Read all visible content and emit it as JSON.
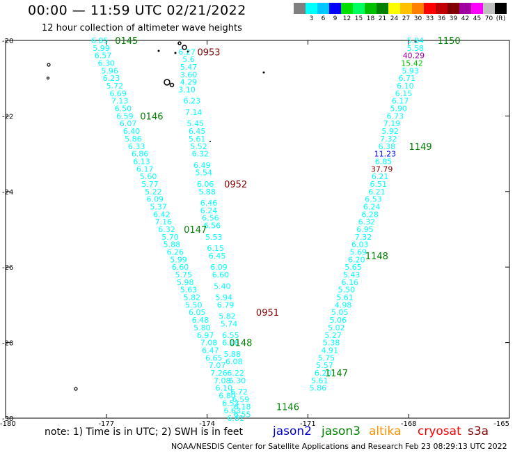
{
  "title": "00:00 — 11:59 UTC 02/21/2022",
  "subtitle": "12 hour collection of altimeter wave heights",
  "color_scale": {
    "labels": [
      "",
      "3",
      "6",
      "9",
      "12",
      "15",
      "18",
      "21",
      "24",
      "27",
      "30",
      "33",
      "36",
      "39",
      "42",
      "45",
      "70",
      "(ft)"
    ],
    "colors": [
      "#808080",
      "#00ffff",
      "#00c8ff",
      "#0000ff",
      "#00e000",
      "#00ff60",
      "#00c000",
      "#008000",
      "#ffff00",
      "#ffc000",
      "#ff8000",
      "#ff0000",
      "#c00000",
      "#800000",
      "#a000a0",
      "#ff00ff",
      "#c0c0c0",
      "#000000"
    ]
  },
  "axes": {
    "lat_labels": [
      "-20",
      "-22",
      "-24",
      "-26",
      "-28",
      "-30"
    ],
    "lon_labels": [
      "-180",
      "-177",
      "-174",
      "-171",
      "-168",
      "-165"
    ]
  },
  "footer": {
    "note": "note: 1) Time is in UTC; 2) SWH is in feet",
    "satellites": [
      {
        "name": "jason2",
        "color": "#0000c8"
      },
      {
        "name": "jason3",
        "color": "#008000"
      },
      {
        "name": "altika",
        "color": "#ff9000"
      },
      {
        "name": "cryosat",
        "color": "#ff0000"
      },
      {
        "name": "s3a",
        "color": "#800000"
      }
    ],
    "credit": "NOAA/NESDIS Center for Satellite Applications and Research",
    "timestamp": "Feb 23 08:29:13 UTC 2022"
  },
  "tracks": [
    {
      "name": "track-0145",
      "color": "#00ffff",
      "points": [
        {
          "lon": -177.2,
          "lat": -20.0,
          "v": "6.85"
        },
        {
          "lon": -177.15,
          "lat": -20.2,
          "v": "5.99"
        },
        {
          "lon": -177.1,
          "lat": -20.4,
          "v": "6.57"
        },
        {
          "lon": -177.0,
          "lat": -20.6,
          "v": "6.30"
        },
        {
          "lon": -176.9,
          "lat": -20.8,
          "v": "5.96"
        },
        {
          "lon": -176.85,
          "lat": -21.0,
          "v": "6.23"
        },
        {
          "lon": -176.75,
          "lat": -21.2,
          "v": "5.72"
        },
        {
          "lon": -176.65,
          "lat": -21.4,
          "v": "6.69"
        },
        {
          "lon": -176.6,
          "lat": -21.6,
          "v": "7.13"
        },
        {
          "lon": -176.5,
          "lat": -21.8,
          "v": "6.50"
        },
        {
          "lon": -176.45,
          "lat": -22.0,
          "v": "6.59"
        },
        {
          "lon": -176.35,
          "lat": -22.2,
          "v": "6.07"
        },
        {
          "lon": -176.25,
          "lat": -22.4,
          "v": "6.40"
        },
        {
          "lon": -176.2,
          "lat": -22.6,
          "v": "5.86"
        },
        {
          "lon": -176.1,
          "lat": -22.8,
          "v": "6.33"
        },
        {
          "lon": -176.0,
          "lat": -23.0,
          "v": "6.86"
        },
        {
          "lon": -175.95,
          "lat": -23.2,
          "v": "6.13"
        },
        {
          "lon": -175.85,
          "lat": -23.4,
          "v": "6.17"
        },
        {
          "lon": -175.75,
          "lat": -23.6,
          "v": "5.60"
        },
        {
          "lon": -175.7,
          "lat": -23.8,
          "v": "5.77"
        },
        {
          "lon": -175.6,
          "lat": -24.0,
          "v": "5.22"
        },
        {
          "lon": -175.55,
          "lat": -24.2,
          "v": "6.09"
        },
        {
          "lon": -175.45,
          "lat": -24.4,
          "v": "5.37"
        },
        {
          "lon": -175.35,
          "lat": -24.6,
          "v": "6.42"
        },
        {
          "lon": -175.3,
          "lat": -24.8,
          "v": "7.16"
        },
        {
          "lon": -175.2,
          "lat": -25.0,
          "v": "6.32"
        },
        {
          "lon": -175.1,
          "lat": -25.2,
          "v": "5.70"
        },
        {
          "lon": -175.05,
          "lat": -25.4,
          "v": "5.88"
        },
        {
          "lon": -174.95,
          "lat": -25.6,
          "v": "6.26"
        },
        {
          "lon": -174.85,
          "lat": -25.8,
          "v": "5.99"
        },
        {
          "lon": -174.8,
          "lat": -26.0,
          "v": "6.60"
        },
        {
          "lon": -174.7,
          "lat": -26.2,
          "v": "5.75"
        },
        {
          "lon": -174.65,
          "lat": -26.4,
          "v": "5.98"
        },
        {
          "lon": -174.55,
          "lat": -26.6,
          "v": "5.63"
        },
        {
          "lon": -174.45,
          "lat": -26.8,
          "v": "5.82"
        },
        {
          "lon": -174.4,
          "lat": -27.0,
          "v": "5.50"
        },
        {
          "lon": -174.3,
          "lat": -27.2,
          "v": "6.05"
        },
        {
          "lon": -174.2,
          "lat": -27.4,
          "v": "6.48"
        },
        {
          "lon": -174.15,
          "lat": -27.6,
          "v": "5.80"
        },
        {
          "lon": -174.05,
          "lat": -27.8,
          "v": "6.97"
        },
        {
          "lon": -173.95,
          "lat": -28.0,
          "v": "7.08"
        },
        {
          "lon": -173.9,
          "lat": -28.2,
          "v": "6.47"
        },
        {
          "lon": -173.8,
          "lat": -28.4,
          "v": "6.65"
        },
        {
          "lon": -173.7,
          "lat": -28.6,
          "v": "7.07"
        },
        {
          "lon": -173.65,
          "lat": -28.8,
          "v": "7.26"
        },
        {
          "lon": -173.55,
          "lat": -29.0,
          "v": "7.08"
        },
        {
          "lon": -173.5,
          "lat": -29.2,
          "v": "6.10"
        },
        {
          "lon": -173.4,
          "lat": -29.4,
          "v": "6.80"
        },
        {
          "lon": -173.3,
          "lat": -29.6,
          "v": "6.53"
        },
        {
          "lon": -173.25,
          "lat": -29.8,
          "v": "6.63"
        },
        {
          "lon": -173.15,
          "lat": -30.0,
          "v": "6.61"
        }
      ]
    },
    {
      "name": "track-0953",
      "color": "#00ffff",
      "points": [
        {
          "lon": -174.6,
          "lat": -20.3,
          "v": "6.27"
        },
        {
          "lon": -174.55,
          "lat": -20.5,
          "v": "5.6"
        },
        {
          "lon": -174.55,
          "lat": -20.7,
          "v": "5.47"
        },
        {
          "lon": -174.55,
          "lat": -20.9,
          "v": "3.60"
        },
        {
          "lon": -174.55,
          "lat": -21.1,
          "v": "4.29"
        },
        {
          "lon": -174.6,
          "lat": -21.3,
          "v": "3.10"
        },
        {
          "lon": -174.45,
          "lat": -21.6,
          "v": "6.23"
        },
        {
          "lon": -174.4,
          "lat": -21.9,
          "v": "7.14"
        },
        {
          "lon": -174.35,
          "lat": -22.2,
          "v": "5.45"
        },
        {
          "lon": -174.3,
          "lat": -22.4,
          "v": "6.45"
        },
        {
          "lon": -174.3,
          "lat": -22.6,
          "v": "5.61"
        },
        {
          "lon": -174.25,
          "lat": -22.8,
          "v": "5.52"
        },
        {
          "lon": -174.2,
          "lat": -23.0,
          "v": "6.32"
        },
        {
          "lon": -174.15,
          "lat": -23.3,
          "v": "6.49"
        },
        {
          "lon": -174.1,
          "lat": -23.5,
          "v": "5.54"
        },
        {
          "lon": -174.05,
          "lat": -23.8,
          "v": "6.06"
        },
        {
          "lon": -174.0,
          "lat": -24.0,
          "v": "5.88"
        },
        {
          "lon": -173.95,
          "lat": -24.3,
          "v": "6.46"
        },
        {
          "lon": -173.95,
          "lat": -24.5,
          "v": "6.24"
        },
        {
          "lon": -173.9,
          "lat": -24.7,
          "v": "6.56"
        },
        {
          "lon": -173.85,
          "lat": -24.9,
          "v": "6.56"
        },
        {
          "lon": -173.8,
          "lat": -25.2,
          "v": "5.53"
        },
        {
          "lon": -173.75,
          "lat": -25.5,
          "v": "6.15"
        },
        {
          "lon": -173.7,
          "lat": -25.7,
          "v": "6.45"
        },
        {
          "lon": -173.65,
          "lat": -26.0,
          "v": "6.09"
        },
        {
          "lon": -173.6,
          "lat": -26.2,
          "v": "6.60"
        },
        {
          "lon": -173.55,
          "lat": -26.5,
          "v": "5.40"
        },
        {
          "lon": -173.5,
          "lat": -26.8,
          "v": "5.94"
        },
        {
          "lon": -173.45,
          "lat": -27.0,
          "v": "6.79"
        },
        {
          "lon": -173.4,
          "lat": -27.3,
          "v": "5.82"
        },
        {
          "lon": -173.35,
          "lat": -27.5,
          "v": "5.74"
        },
        {
          "lon": -173.3,
          "lat": -27.8,
          "v": "6.55"
        },
        {
          "lon": -173.3,
          "lat": -28.0,
          "v": "6.18"
        },
        {
          "lon": -173.25,
          "lat": -28.3,
          "v": "5.88"
        },
        {
          "lon": -173.2,
          "lat": -28.5,
          "v": "6.08"
        },
        {
          "lon": -173.15,
          "lat": -28.8,
          "v": "6.22"
        },
        {
          "lon": -173.1,
          "lat": -29.0,
          "v": "6.30"
        },
        {
          "lon": -173.05,
          "lat": -29.3,
          "v": "6.72"
        },
        {
          "lon": -173.0,
          "lat": -29.5,
          "v": "6.59"
        },
        {
          "lon": -172.95,
          "lat": -29.7,
          "v": "6.18"
        },
        {
          "lon": -172.95,
          "lat": -29.9,
          "v": "6.55"
        }
      ]
    },
    {
      "name": "track-1150",
      "color": "#00ffff",
      "points": [
        {
          "lon": -167.8,
          "lat": -20.0,
          "v": "5.84"
        },
        {
          "lon": -167.8,
          "lat": -20.2,
          "v": "5.58"
        },
        {
          "lon": -167.85,
          "lat": -20.4,
          "v": "40.29",
          "c": "#a000a0"
        },
        {
          "lon": -167.9,
          "lat": -20.6,
          "v": "15.42",
          "c": "#00c000"
        },
        {
          "lon": -167.95,
          "lat": -20.8,
          "v": "5.93"
        },
        {
          "lon": -168.05,
          "lat": -21.0,
          "v": "6.71"
        },
        {
          "lon": -168.1,
          "lat": -21.2,
          "v": "6.10"
        },
        {
          "lon": -168.15,
          "lat": -21.4,
          "v": "6.15"
        },
        {
          "lon": -168.25,
          "lat": -21.6,
          "v": "6.17"
        },
        {
          "lon": -168.3,
          "lat": -21.8,
          "v": "5.90"
        },
        {
          "lon": -168.4,
          "lat": -22.0,
          "v": "6.73"
        },
        {
          "lon": -168.5,
          "lat": -22.2,
          "v": "7.19"
        },
        {
          "lon": -168.55,
          "lat": -22.4,
          "v": "5.92"
        },
        {
          "lon": -168.6,
          "lat": -22.6,
          "v": "7.32"
        },
        {
          "lon": -168.65,
          "lat": -22.8,
          "v": "6.38"
        },
        {
          "lon": -168.7,
          "lat": -23.0,
          "v": "11.23",
          "c": "#0000ff"
        },
        {
          "lon": -168.75,
          "lat": -23.2,
          "v": "6.85"
        },
        {
          "lon": -168.8,
          "lat": -23.4,
          "v": "37.79",
          "c": "#800000"
        },
        {
          "lon": -168.85,
          "lat": -23.6,
          "v": "6.21"
        },
        {
          "lon": -168.9,
          "lat": -23.8,
          "v": "6.51"
        },
        {
          "lon": -168.95,
          "lat": -24.0,
          "v": "6.21"
        },
        {
          "lon": -169.05,
          "lat": -24.2,
          "v": "6.53"
        },
        {
          "lon": -169.1,
          "lat": -24.4,
          "v": "6.24"
        },
        {
          "lon": -169.15,
          "lat": -24.6,
          "v": "6.28"
        },
        {
          "lon": -169.25,
          "lat": -24.8,
          "v": "6.32"
        },
        {
          "lon": -169.3,
          "lat": -25.0,
          "v": "6.95"
        },
        {
          "lon": -169.35,
          "lat": -25.2,
          "v": "7.32"
        },
        {
          "lon": -169.45,
          "lat": -25.4,
          "v": "6.03"
        },
        {
          "lon": -169.5,
          "lat": -25.6,
          "v": "5.69"
        },
        {
          "lon": -169.55,
          "lat": -25.8,
          "v": "6.20"
        },
        {
          "lon": -169.65,
          "lat": -26.0,
          "v": "5.65"
        },
        {
          "lon": -169.7,
          "lat": -26.2,
          "v": "5.43"
        },
        {
          "lon": -169.75,
          "lat": -26.4,
          "v": "6.16"
        },
        {
          "lon": -169.85,
          "lat": -26.6,
          "v": "5.50"
        },
        {
          "lon": -169.9,
          "lat": -26.8,
          "v": "5.61"
        },
        {
          "lon": -169.95,
          "lat": -27.0,
          "v": "4.98"
        },
        {
          "lon": -170.05,
          "lat": -27.2,
          "v": "5.05"
        },
        {
          "lon": -170.1,
          "lat": -27.4,
          "v": "5.06"
        },
        {
          "lon": -170.15,
          "lat": -27.6,
          "v": "5.02"
        },
        {
          "lon": -170.25,
          "lat": -27.8,
          "v": "5.27"
        },
        {
          "lon": -170.3,
          "lat": -28.0,
          "v": "5.38"
        },
        {
          "lon": -170.35,
          "lat": -28.2,
          "v": "4.91"
        },
        {
          "lon": -170.45,
          "lat": -28.4,
          "v": "5.75"
        },
        {
          "lon": -170.5,
          "lat": -28.6,
          "v": "5.57"
        },
        {
          "lon": -170.55,
          "lat": -28.8,
          "v": "6.20"
        },
        {
          "lon": -170.65,
          "lat": -29.0,
          "v": "5.61"
        },
        {
          "lon": -170.7,
          "lat": -29.2,
          "v": "5.86"
        }
      ]
    }
  ],
  "pass_labels": [
    {
      "text": "0145",
      "lon": -176.4,
      "lat": -20.0,
      "color": "#008000"
    },
    {
      "text": "0953",
      "lon": -173.95,
      "lat": -20.3,
      "color": "#800000"
    },
    {
      "text": "1150",
      "lon": -166.8,
      "lat": -20.0,
      "color": "#008000"
    },
    {
      "text": "0146",
      "lon": -175.65,
      "lat": -22.0,
      "color": "#008000"
    },
    {
      "text": "1149",
      "lon": -167.65,
      "lat": -22.8,
      "color": "#008000"
    },
    {
      "text": "0952",
      "lon": -173.15,
      "lat": -23.8,
      "color": "#800000"
    },
    {
      "text": "0147",
      "lon": -174.35,
      "lat": -25.0,
      "color": "#008000"
    },
    {
      "text": "1148",
      "lon": -168.95,
      "lat": -25.7,
      "color": "#008000"
    },
    {
      "text": "0951",
      "lon": -172.2,
      "lat": -27.2,
      "color": "#800000"
    },
    {
      "text": "0148",
      "lon": -173.0,
      "lat": -28.0,
      "color": "#008000"
    },
    {
      "text": "1147",
      "lon": -170.15,
      "lat": -28.8,
      "color": "#008000"
    },
    {
      "text": "1146",
      "lon": -171.6,
      "lat": -29.7,
      "color": "#008000"
    }
  ]
}
